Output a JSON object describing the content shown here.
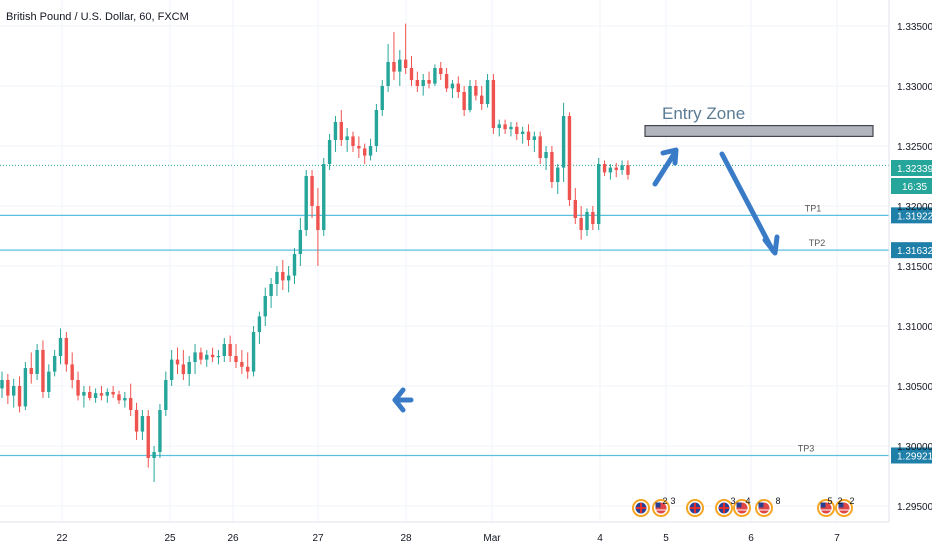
{
  "chart_data": {
    "type": "candlestick",
    "title": "British Pound / U.S. Dollar, 60, FXCM",
    "y_axis": {
      "ylim": [
        1.2945,
        1.3372
      ],
      "ticks": [
        "1.33500",
        "1.33000",
        "1.32500",
        "1.32000",
        "1.31500",
        "1.31000",
        "1.30500",
        "1.30000",
        "1.29500"
      ]
    },
    "x_axis": {
      "ticks": [
        "22",
        "25",
        "26",
        "27",
        "28",
        "Mar",
        "4",
        "5",
        "6",
        "7"
      ]
    },
    "current_price": {
      "label": "1.32339",
      "value": 1.32339,
      "timer": "16:35",
      "color": "#26a69a"
    },
    "levels": [
      {
        "name": "TP1",
        "value": 1.31922,
        "label": "1.31922"
      },
      {
        "name": "TP2",
        "value": 1.31632,
        "label": "1.31632"
      },
      {
        "name": "TP3",
        "value": 1.29921,
        "label": "1.29921"
      }
    ],
    "annotations": {
      "entry_zone": {
        "text": "Entry Zone",
        "low": 1.3258,
        "high": 1.3267
      }
    },
    "colors": {
      "up": "#26a69a",
      "down": "#ef5350",
      "level": "#5bc0de",
      "arrow": "#3a7bc8"
    },
    "events": [
      "2",
      "3",
      "3",
      "4",
      "8",
      "5",
      "2",
      "2"
    ],
    "candles": [
      [
        0,
        1.3048,
        1.3062,
        1.304,
        1.3055
      ],
      [
        1,
        1.3055,
        1.306,
        1.3035,
        1.3042
      ],
      [
        2,
        1.3042,
        1.3056,
        1.3032,
        1.305
      ],
      [
        3,
        1.305,
        1.3058,
        1.3028,
        1.3033
      ],
      [
        4,
        1.3033,
        1.307,
        1.303,
        1.3065
      ],
      [
        5,
        1.3065,
        1.3078,
        1.3052,
        1.306
      ],
      [
        6,
        1.306,
        1.3085,
        1.3055,
        1.308
      ],
      [
        7,
        1.308,
        1.3088,
        1.304,
        1.3045
      ],
      [
        8,
        1.3045,
        1.3068,
        1.304,
        1.3062
      ],
      [
        9,
        1.3062,
        1.308,
        1.3058,
        1.3075
      ],
      [
        10,
        1.3075,
        1.3098,
        1.3068,
        1.309
      ],
      [
        11,
        1.309,
        1.3095,
        1.3062,
        1.3068
      ],
      [
        12,
        1.3068,
        1.3078,
        1.3048,
        1.3055
      ],
      [
        13,
        1.3055,
        1.3062,
        1.3038,
        1.3042
      ],
      [
        14,
        1.3042,
        1.305,
        1.3032,
        1.3045
      ],
      [
        15,
        1.3045,
        1.305,
        1.3038,
        1.304
      ],
      [
        16,
        1.304,
        1.3048,
        1.3036,
        1.3044
      ],
      [
        17,
        1.3044,
        1.305,
        1.3038,
        1.3042
      ],
      [
        18,
        1.3042,
        1.3048,
        1.3036,
        1.3045
      ],
      [
        19,
        1.3045,
        1.305,
        1.304,
        1.3043
      ],
      [
        20,
        1.3043,
        1.3046,
        1.3035,
        1.3038
      ],
      [
        21,
        1.3038,
        1.3045,
        1.3032,
        1.304
      ],
      [
        22,
        1.304,
        1.3052,
        1.3025,
        1.303
      ],
      [
        23,
        1.303,
        1.3036,
        1.3005,
        1.3012
      ],
      [
        24,
        1.3012,
        1.303,
        1.3005,
        1.3025
      ],
      [
        25,
        1.3025,
        1.303,
        1.2982,
        1.299
      ],
      [
        26,
        1.299,
        1.3,
        1.297,
        1.2995
      ],
      [
        27,
        1.2995,
        1.3035,
        1.299,
        1.303
      ],
      [
        28,
        1.303,
        1.3062,
        1.3025,
        1.3055
      ],
      [
        29,
        1.3055,
        1.308,
        1.305,
        1.3072
      ],
      [
        30,
        1.3072,
        1.3082,
        1.306,
        1.3068
      ],
      [
        31,
        1.3068,
        1.308,
        1.3055,
        1.306
      ],
      [
        32,
        1.306,
        1.3075,
        1.305,
        1.307
      ],
      [
        33,
        1.307,
        1.3085,
        1.306,
        1.3078
      ],
      [
        34,
        1.3078,
        1.3082,
        1.3068,
        1.3072
      ],
      [
        35,
        1.3072,
        1.308,
        1.3066,
        1.3076
      ],
      [
        36,
        1.3076,
        1.3082,
        1.307,
        1.3074
      ],
      [
        37,
        1.3074,
        1.308,
        1.3068,
        1.3075
      ],
      [
        38,
        1.3075,
        1.309,
        1.307,
        1.3085
      ],
      [
        39,
        1.3085,
        1.3092,
        1.307,
        1.3075
      ],
      [
        40,
        1.3075,
        1.3085,
        1.3065,
        1.307
      ],
      [
        41,
        1.307,
        1.308,
        1.306,
        1.3066
      ],
      [
        42,
        1.3066,
        1.3078,
        1.3056,
        1.3062
      ],
      [
        43,
        1.3062,
        1.31,
        1.3058,
        1.3095
      ],
      [
        44,
        1.3095,
        1.3112,
        1.3085,
        1.3108
      ],
      [
        45,
        1.3108,
        1.3132,
        1.31,
        1.3125
      ],
      [
        46,
        1.3125,
        1.314,
        1.3115,
        1.3135
      ],
      [
        47,
        1.3135,
        1.315,
        1.3125,
        1.3145
      ],
      [
        48,
        1.3145,
        1.3155,
        1.313,
        1.3138
      ],
      [
        49,
        1.3138,
        1.315,
        1.3128,
        1.3142
      ],
      [
        50,
        1.3142,
        1.3165,
        1.3135,
        1.316
      ],
      [
        51,
        1.316,
        1.319,
        1.315,
        1.318
      ],
      [
        52,
        1.318,
        1.323,
        1.3175,
        1.3225
      ],
      [
        53,
        1.3225,
        1.323,
        1.319,
        1.32
      ],
      [
        54,
        1.32,
        1.3215,
        1.315,
        1.318
      ],
      [
        55,
        1.318,
        1.324,
        1.3175,
        1.3235
      ],
      [
        56,
        1.3235,
        1.326,
        1.323,
        1.3255
      ],
      [
        57,
        1.3255,
        1.3275,
        1.3245,
        1.327
      ],
      [
        58,
        1.327,
        1.328,
        1.325,
        1.3255
      ],
      [
        59,
        1.3255,
        1.3265,
        1.3245,
        1.3258
      ],
      [
        60,
        1.3258,
        1.3262,
        1.3245,
        1.325
      ],
      [
        61,
        1.325,
        1.3258,
        1.324,
        1.3248
      ],
      [
        62,
        1.3248,
        1.3252,
        1.3235,
        1.3242
      ],
      [
        63,
        1.3242,
        1.3256,
        1.3238,
        1.325
      ],
      [
        64,
        1.325,
        1.3285,
        1.3245,
        1.328
      ],
      [
        65,
        1.328,
        1.3305,
        1.3275,
        1.33
      ],
      [
        66,
        1.33,
        1.3335,
        1.3295,
        1.332
      ],
      [
        67,
        1.332,
        1.3345,
        1.3305,
        1.3312
      ],
      [
        68,
        1.3312,
        1.333,
        1.33,
        1.3322
      ],
      [
        69,
        1.3322,
        1.3352,
        1.331,
        1.3315
      ],
      [
        70,
        1.3315,
        1.3325,
        1.33,
        1.3305
      ],
      [
        71,
        1.3305,
        1.3312,
        1.3295,
        1.33
      ],
      [
        72,
        1.33,
        1.331,
        1.3292,
        1.3305
      ],
      [
        73,
        1.3305,
        1.3312,
        1.3298,
        1.3302
      ],
      [
        74,
        1.3302,
        1.3318,
        1.33,
        1.3315
      ],
      [
        75,
        1.3315,
        1.332,
        1.3305,
        1.331
      ],
      [
        76,
        1.331,
        1.3315,
        1.3295,
        1.3298
      ],
      [
        77,
        1.3298,
        1.3305,
        1.329,
        1.3302
      ],
      [
        78,
        1.3302,
        1.3308,
        1.329,
        1.3295
      ],
      [
        79,
        1.3295,
        1.33,
        1.3275,
        1.328
      ],
      [
        80,
        1.328,
        1.3305,
        1.3278,
        1.33
      ],
      [
        81,
        1.33,
        1.3305,
        1.3288,
        1.3292
      ],
      [
        82,
        1.3292,
        1.33,
        1.328,
        1.3285
      ],
      [
        83,
        1.3285,
        1.331,
        1.3282,
        1.3305
      ],
      [
        84,
        1.3305,
        1.331,
        1.326,
        1.3265
      ],
      [
        85,
        1.3265,
        1.3272,
        1.3258,
        1.3268
      ],
      [
        86,
        1.3268,
        1.3272,
        1.326,
        1.3264
      ],
      [
        87,
        1.3264,
        1.327,
        1.3258,
        1.3266
      ],
      [
        88,
        1.3266,
        1.327,
        1.3255,
        1.326
      ],
      [
        89,
        1.326,
        1.3266,
        1.3252,
        1.3262
      ],
      [
        90,
        1.3262,
        1.3268,
        1.325,
        1.3255
      ],
      [
        91,
        1.3255,
        1.3262,
        1.3245,
        1.3258
      ],
      [
        92,
        1.3258,
        1.3262,
        1.3235,
        1.324
      ],
      [
        93,
        1.324,
        1.325,
        1.323,
        1.3245
      ],
      [
        94,
        1.3245,
        1.325,
        1.3215,
        1.322
      ],
      [
        95,
        1.322,
        1.3235,
        1.321,
        1.3232
      ],
      [
        96,
        1.3232,
        1.3286,
        1.322,
        1.3275
      ],
      [
        97,
        1.3275,
        1.3278,
        1.32,
        1.3205
      ],
      [
        98,
        1.3205,
        1.3215,
        1.3185,
        1.319
      ],
      [
        99,
        1.319,
        1.32,
        1.3172,
        1.318
      ],
      [
        100,
        1.318,
        1.3198,
        1.3175,
        1.3195
      ],
      [
        101,
        1.3195,
        1.32,
        1.318,
        1.3185
      ],
      [
        102,
        1.3185,
        1.324,
        1.318,
        1.3235
      ],
      [
        103,
        1.3235,
        1.3238,
        1.3225,
        1.3228
      ],
      [
        104,
        1.3228,
        1.3235,
        1.3222,
        1.3232
      ],
      [
        105,
        1.3232,
        1.3236,
        1.3224,
        1.323
      ],
      [
        106,
        1.323,
        1.3238,
        1.3226,
        1.3234
      ],
      [
        107,
        1.3234,
        1.3238,
        1.3222,
        1.3226
      ]
    ]
  }
}
